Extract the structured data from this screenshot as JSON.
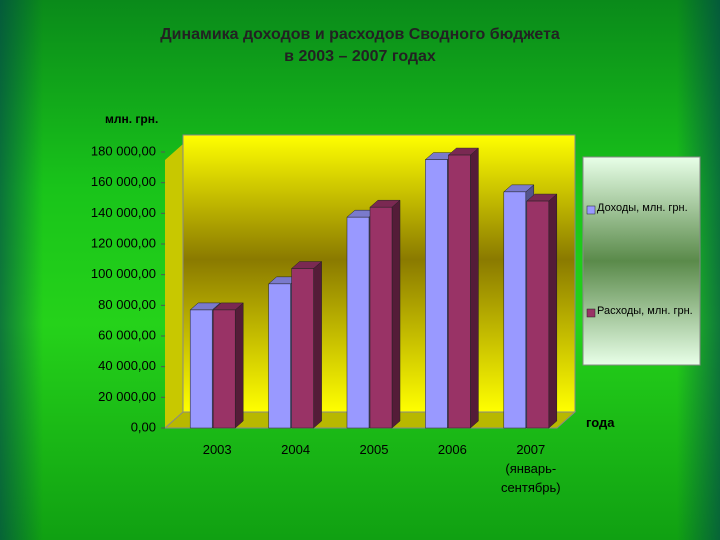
{
  "chart_data": {
    "type": "bar3d",
    "title": "Динамика доходов и расходов Сводного бюджета\nв 2003 – 2007 годах",
    "y_label": "млн. грн.",
    "x_label": "года",
    "categories": [
      "2003",
      "2004",
      "2005",
      "2006",
      "2007\n(январь-\nсентябрь)"
    ],
    "series": [
      {
        "name": "Доходы, млн. грн.",
        "color": "#9999ff",
        "values": [
          77000,
          94000,
          137500,
          175000,
          154000
        ]
      },
      {
        "name": "Расходы, млн. грн.",
        "color": "#993366",
        "values": [
          77000,
          104000,
          144000,
          178000,
          148000
        ]
      }
    ],
    "ylim": [
      0,
      180000
    ],
    "yticks": [
      {
        "value": 0,
        "label": "0,00"
      },
      {
        "value": 20000,
        "label": "20 000,00"
      },
      {
        "value": 40000,
        "label": "40 000,00"
      },
      {
        "value": 60000,
        "label": "60 000,00"
      },
      {
        "value": 80000,
        "label": "80 000,00"
      },
      {
        "value": 100000,
        "label": "100 000,00"
      },
      {
        "value": 120000,
        "label": "120 000,00"
      },
      {
        "value": 140000,
        "label": "140 000,00"
      },
      {
        "value": 160000,
        "label": "160 000,00"
      },
      {
        "value": 180000,
        "label": "180 000,00"
      }
    ],
    "legend": "right"
  }
}
